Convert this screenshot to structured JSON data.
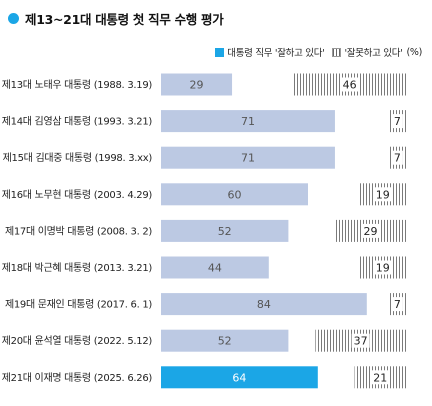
{
  "title": "제13~21대 대통령 첫 직무 수행 평가",
  "legend": {
    "approve": "대통령 직무 '잘하고 있다'",
    "disapprove": "'잘못하고 있다'",
    "unit": "(%)"
  },
  "colors": {
    "approve_bar": "#bcc9e3",
    "highlight_bar": "#1ba6e6",
    "accent": "#1ba6e6"
  },
  "chart_data": {
    "type": "bar",
    "orientation": "horizontal",
    "title": "제13~21대 대통령 첫 직무 수행 평가",
    "categories": [
      "제13대 노태우 대통령 (1988. 3.19)",
      "제14대 김영삼 대통령 (1993. 3.21)",
      "제15대 김대중 대통령 (1998. 3.xx)",
      "제16대 노무현 대통령 (2003. 4.29)",
      "제17대 이명박 대통령 (2008. 3. 2)",
      "제18대 박근혜 대통령 (2013. 3.21)",
      "제19대 문재인 대통령 (2017. 6. 1)",
      "제20대 윤석열 대통령 (2022. 5.12)",
      "제21대 이재명 대통령 (2025. 6.26)"
    ],
    "series": [
      {
        "name": "대통령 직무 '잘하고 있다'",
        "values": [
          29,
          71,
          71,
          60,
          52,
          44,
          84,
          52,
          64
        ]
      },
      {
        "name": "'잘못하고 있다'",
        "values": [
          46,
          7,
          7,
          19,
          29,
          19,
          7,
          37,
          21
        ]
      }
    ],
    "highlight_index": 8,
    "xlim": [
      0,
      100
    ],
    "grid": false,
    "legend_position": "top-right"
  }
}
